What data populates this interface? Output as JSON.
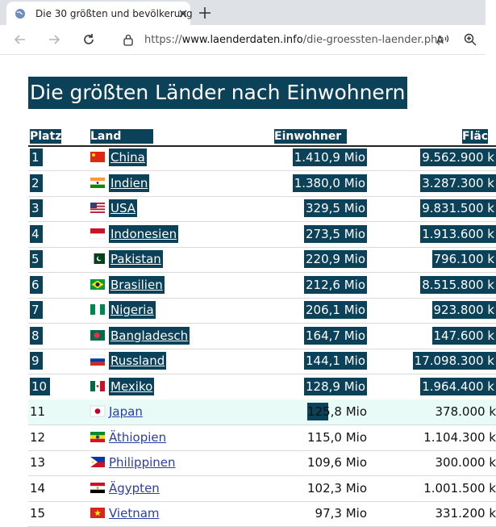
{
  "browser": {
    "tab_title": "Die 30 größten und bevölkerung",
    "url_prefix": "https://",
    "url_host": "www.laenderdaten.info",
    "url_path": "/die-groessten-laender.php"
  },
  "page": {
    "heading": "Die größten Länder nach Einwohnern",
    "columns": {
      "rank": "Platz",
      "country": "Land",
      "population": "Einwohner",
      "area": "Fläc"
    },
    "rows": [
      {
        "rank": "1",
        "country": "China",
        "population": "1.410,9 Mio",
        "area": "9.562.900 k",
        "flag": "china-flag"
      },
      {
        "rank": "2",
        "country": "Indien",
        "population": "1.380,0 Mio",
        "area": "3.287.300 k",
        "flag": "india-flag"
      },
      {
        "rank": "3",
        "country": "USA",
        "population": "329,5 Mio",
        "area": "9.831.500 k",
        "flag": "usa-flag"
      },
      {
        "rank": "4",
        "country": "Indonesien",
        "population": "273,5 Mio",
        "area": "1.913.600 k",
        "flag": "indonesia-flag"
      },
      {
        "rank": "5",
        "country": "Pakistan",
        "population": "220,9 Mio",
        "area": "796.100 k",
        "flag": "pakistan-flag"
      },
      {
        "rank": "6",
        "country": "Brasilien",
        "population": "212,6 Mio",
        "area": "8.515.800 k",
        "flag": "brazil-flag"
      },
      {
        "rank": "7",
        "country": "Nigeria",
        "population": "206,1 Mio",
        "area": "923.800 k",
        "flag": "nigeria-flag"
      },
      {
        "rank": "8",
        "country": "Bangladesch",
        "population": "164,7 Mio",
        "area": "147.600 k",
        "flag": "bangladesh-flag"
      },
      {
        "rank": "9",
        "country": "Russland",
        "population": "144,1 Mio",
        "area": "17.098.300 k",
        "flag": "russia-flag"
      },
      {
        "rank": "10",
        "country": "Mexiko",
        "population": "128,9 Mio",
        "area": "1.964.400 k",
        "flag": "mexico-flag"
      },
      {
        "rank": "11",
        "country": "Japan",
        "population": "125,8 Mio",
        "area": "378.000 k",
        "flag": "japan-flag"
      },
      {
        "rank": "12",
        "country": "Äthiopien",
        "population": "115,0 Mio",
        "area": "1.104.300 k",
        "flag": "ethiopia-flag"
      },
      {
        "rank": "13",
        "country": "Philippinen",
        "population": "109,6 Mio",
        "area": "300.000 k",
        "flag": "philippines-flag"
      },
      {
        "rank": "14",
        "country": "Ägypten",
        "population": "102,3 Mio",
        "area": "1.001.500 k",
        "flag": "egypt-flag"
      },
      {
        "rank": "15",
        "country": "Vietnam",
        "population": "97,3 Mio",
        "area": "331.200 k",
        "flag": "vietnam-flag"
      }
    ]
  }
}
